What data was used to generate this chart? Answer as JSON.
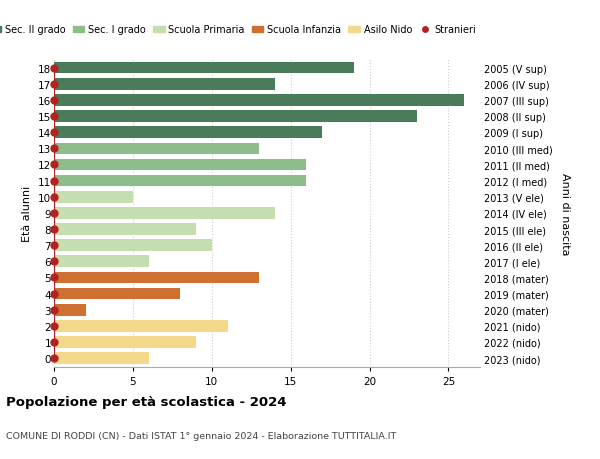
{
  "ages": [
    18,
    17,
    16,
    15,
    14,
    13,
    12,
    11,
    10,
    9,
    8,
    7,
    6,
    5,
    4,
    3,
    2,
    1,
    0
  ],
  "years": [
    "2005 (V sup)",
    "2006 (IV sup)",
    "2007 (III sup)",
    "2008 (II sup)",
    "2009 (I sup)",
    "2010 (III med)",
    "2011 (II med)",
    "2012 (I med)",
    "2013 (V ele)",
    "2014 (IV ele)",
    "2015 (III ele)",
    "2016 (II ele)",
    "2017 (I ele)",
    "2018 (mater)",
    "2019 (mater)",
    "2020 (mater)",
    "2021 (nido)",
    "2022 (nido)",
    "2023 (nido)"
  ],
  "values": [
    19,
    14,
    26,
    23,
    17,
    13,
    16,
    16,
    5,
    14,
    9,
    10,
    6,
    13,
    8,
    2,
    11,
    9,
    6
  ],
  "bar_colors": [
    "#4a7c59",
    "#4a7c59",
    "#4a7c59",
    "#4a7c59",
    "#4a7c59",
    "#8fbc8b",
    "#8fbc8b",
    "#8fbc8b",
    "#c5deb0",
    "#c5deb0",
    "#c5deb0",
    "#c5deb0",
    "#c5deb0",
    "#d07030",
    "#d07030",
    "#d07030",
    "#f5d98b",
    "#f5d98b",
    "#f5d98b"
  ],
  "legend_labels": [
    "Sec. II grado",
    "Sec. I grado",
    "Scuola Primaria",
    "Scuola Infanzia",
    "Asilo Nido",
    "Stranieri"
  ],
  "legend_colors": [
    "#4a7c59",
    "#8fbc8b",
    "#c5deb0",
    "#d07030",
    "#f5d98b",
    "#b22222"
  ],
  "title": "Popolazione per età scolastica - 2024",
  "subtitle": "COMUNE DI RODDI (CN) - Dati ISTAT 1° gennaio 2024 - Elaborazione TUTTITALIA.IT",
  "ylabel_left": "Età alunni",
  "ylabel_right": "Anni di nascita",
  "xlim": [
    0,
    27
  ],
  "xticks": [
    0,
    5,
    10,
    15,
    20,
    25
  ],
  "dot_color": "#b22222",
  "dot_size": 25,
  "bar_height": 0.72,
  "bg_color": "#ffffff",
  "grid_color": "#cccccc"
}
